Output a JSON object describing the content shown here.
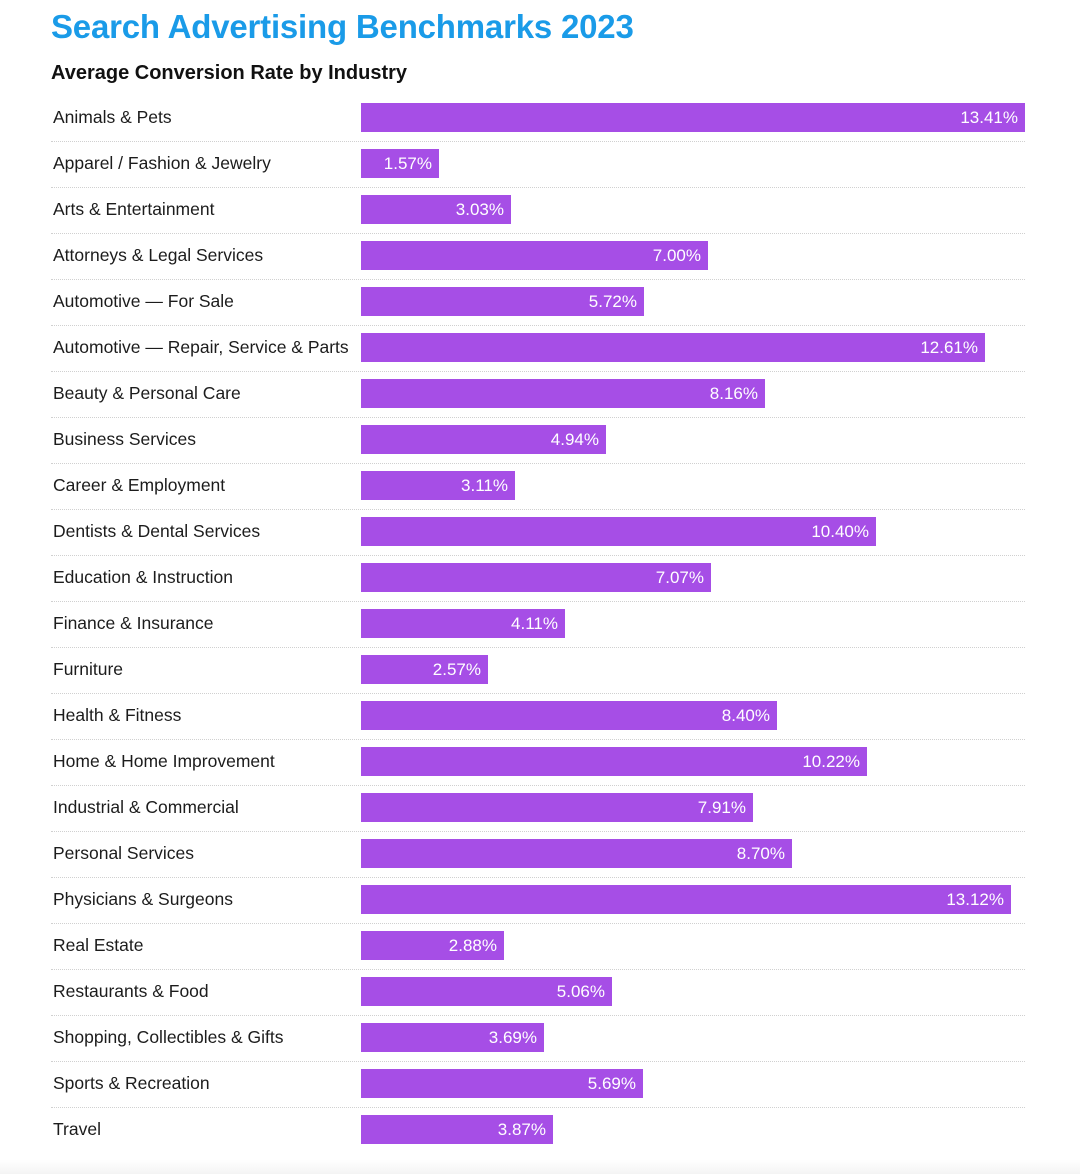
{
  "chart_data": {
    "type": "bar",
    "orientation": "horizontal",
    "title": "Search Advertising Benchmarks 2023",
    "subtitle": "Average Conversion Rate by Industry",
    "unit": "%",
    "xlim": [
      0,
      13.41
    ],
    "color": "#a64ee6",
    "categories": [
      "Animals & Pets",
      "Apparel / Fashion & Jewelry",
      "Arts & Entertainment",
      "Attorneys & Legal Services",
      "Automotive — For Sale",
      "Automotive — Repair, Service & Parts",
      "Beauty & Personal Care",
      "Business Services",
      "Career & Employment",
      "Dentists & Dental Services",
      "Education & Instruction",
      "Finance & Insurance",
      "Furniture",
      "Health & Fitness",
      "Home & Home Improvement",
      "Industrial & Commercial",
      "Personal Services",
      "Physicians & Surgeons",
      "Real Estate",
      "Restaurants & Food",
      "Shopping, Collectibles & Gifts",
      "Sports & Recreation",
      "Travel"
    ],
    "values": [
      13.41,
      1.57,
      3.03,
      7.0,
      5.72,
      12.61,
      8.16,
      4.94,
      3.11,
      10.4,
      7.07,
      4.11,
      2.57,
      8.4,
      10.22,
      7.91,
      8.7,
      13.12,
      2.88,
      5.06,
      3.69,
      5.69,
      3.87
    ],
    "value_labels": [
      "13.41%",
      "1.57%",
      "3.03%",
      "7.00%",
      "5.72%",
      "12.61%",
      "8.16%",
      "4.94%",
      "3.11%",
      "10.40%",
      "7.07%",
      "4.11%",
      "2.57%",
      "8.40%",
      "10.22%",
      "7.91%",
      "8.70%",
      "13.12%",
      "2.88%",
      "5.06%",
      "3.69%",
      "5.69%",
      "3.87%"
    ]
  }
}
